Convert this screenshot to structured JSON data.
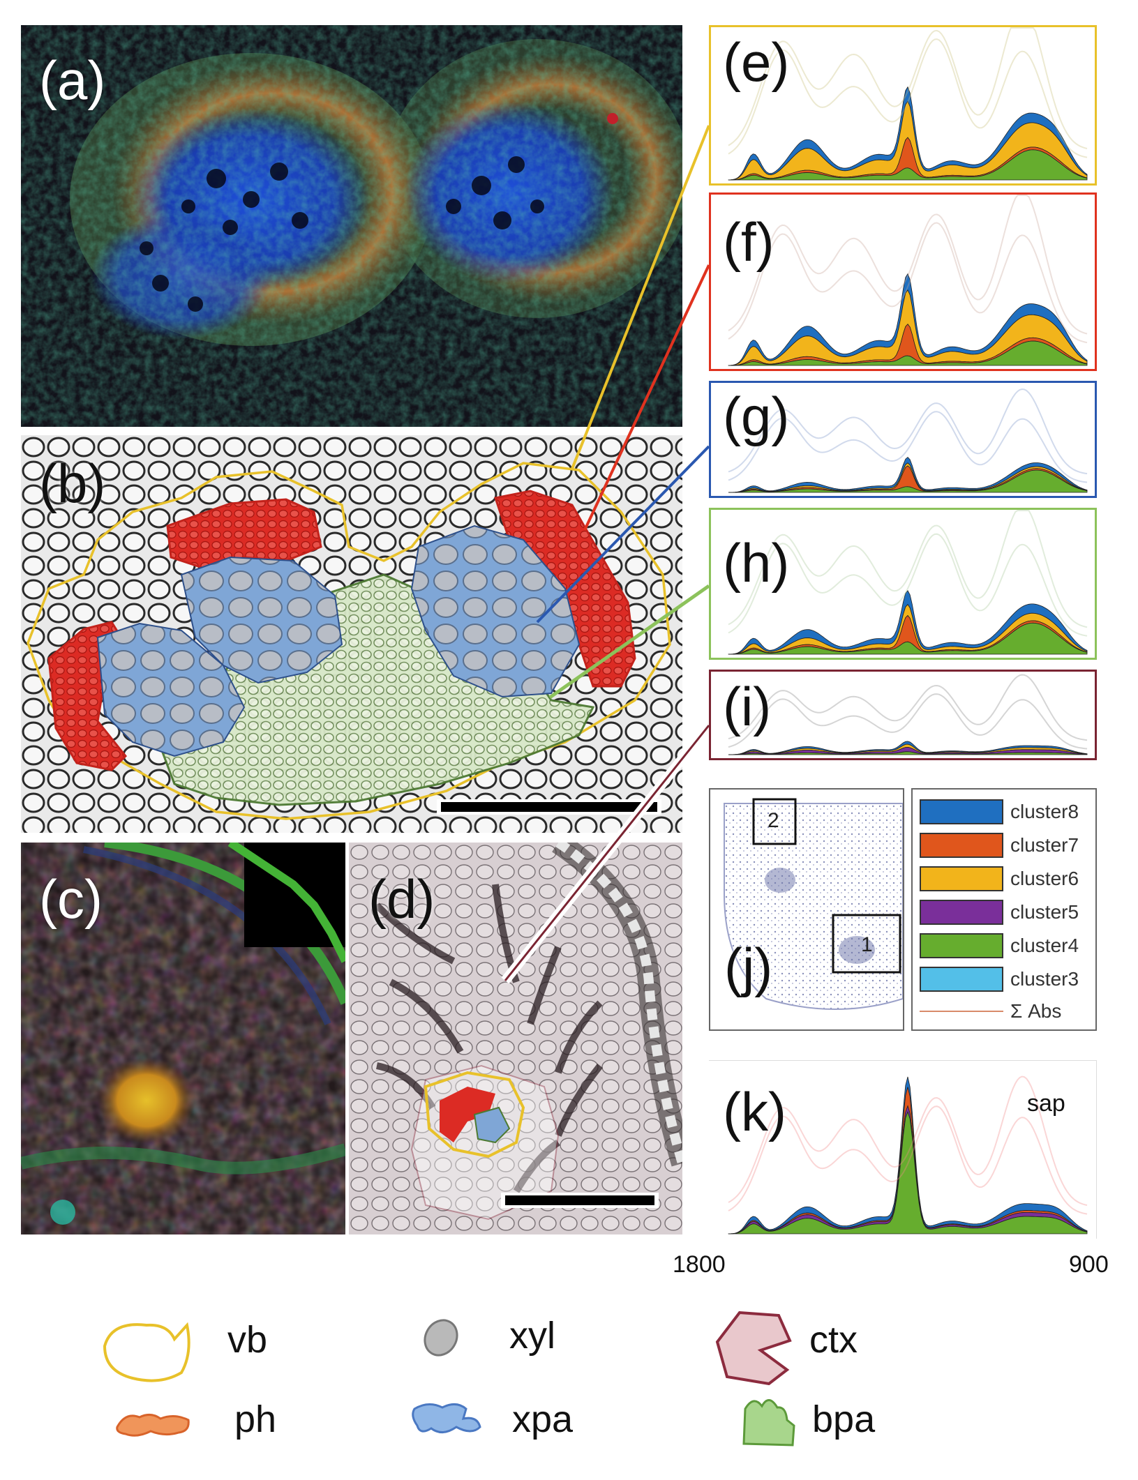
{
  "panels": {
    "a": "(a)",
    "b": "(b)",
    "c": "(c)",
    "d": "(d)",
    "e": "(e)",
    "f": "(f)",
    "g": "(g)",
    "h": "(h)",
    "i": "(i)",
    "j": "(j)",
    "k": "(k)"
  },
  "colors": {
    "vb": "#e8c12a",
    "ph": "#e0321f",
    "xpa": "#6f9ed6",
    "xyl": "#b9b9b9",
    "bpa": "#9ccf86",
    "ctx": "#8c2b3e",
    "cluster8": "#1f6fc0",
    "cluster7": "#e0561c",
    "cluster6": "#f2b41b",
    "cluster5": "#7a2f9a",
    "cluster4": "#66ad2e",
    "cluster3": "#53bfe8"
  },
  "frame_colors": {
    "e": "#e8c12a",
    "f": "#e0321f",
    "g": "#2a58b0",
    "h": "#8cc25b",
    "i": "#7a2432"
  },
  "legend_j": {
    "items": [
      "cluster8",
      "cluster7",
      "cluster6",
      "cluster5",
      "cluster4",
      "cluster3"
    ],
    "sum_label": "Σ Abs",
    "box_labels": [
      "2",
      "1"
    ]
  },
  "axis": {
    "left": "1800",
    "right": "900"
  },
  "sap_label": "sap",
  "bottom_legend": {
    "vb": "vb",
    "ph": "ph",
    "xyl": "xyl",
    "xpa": "xpa",
    "ctx": "ctx",
    "bpa": "bpa"
  }
}
